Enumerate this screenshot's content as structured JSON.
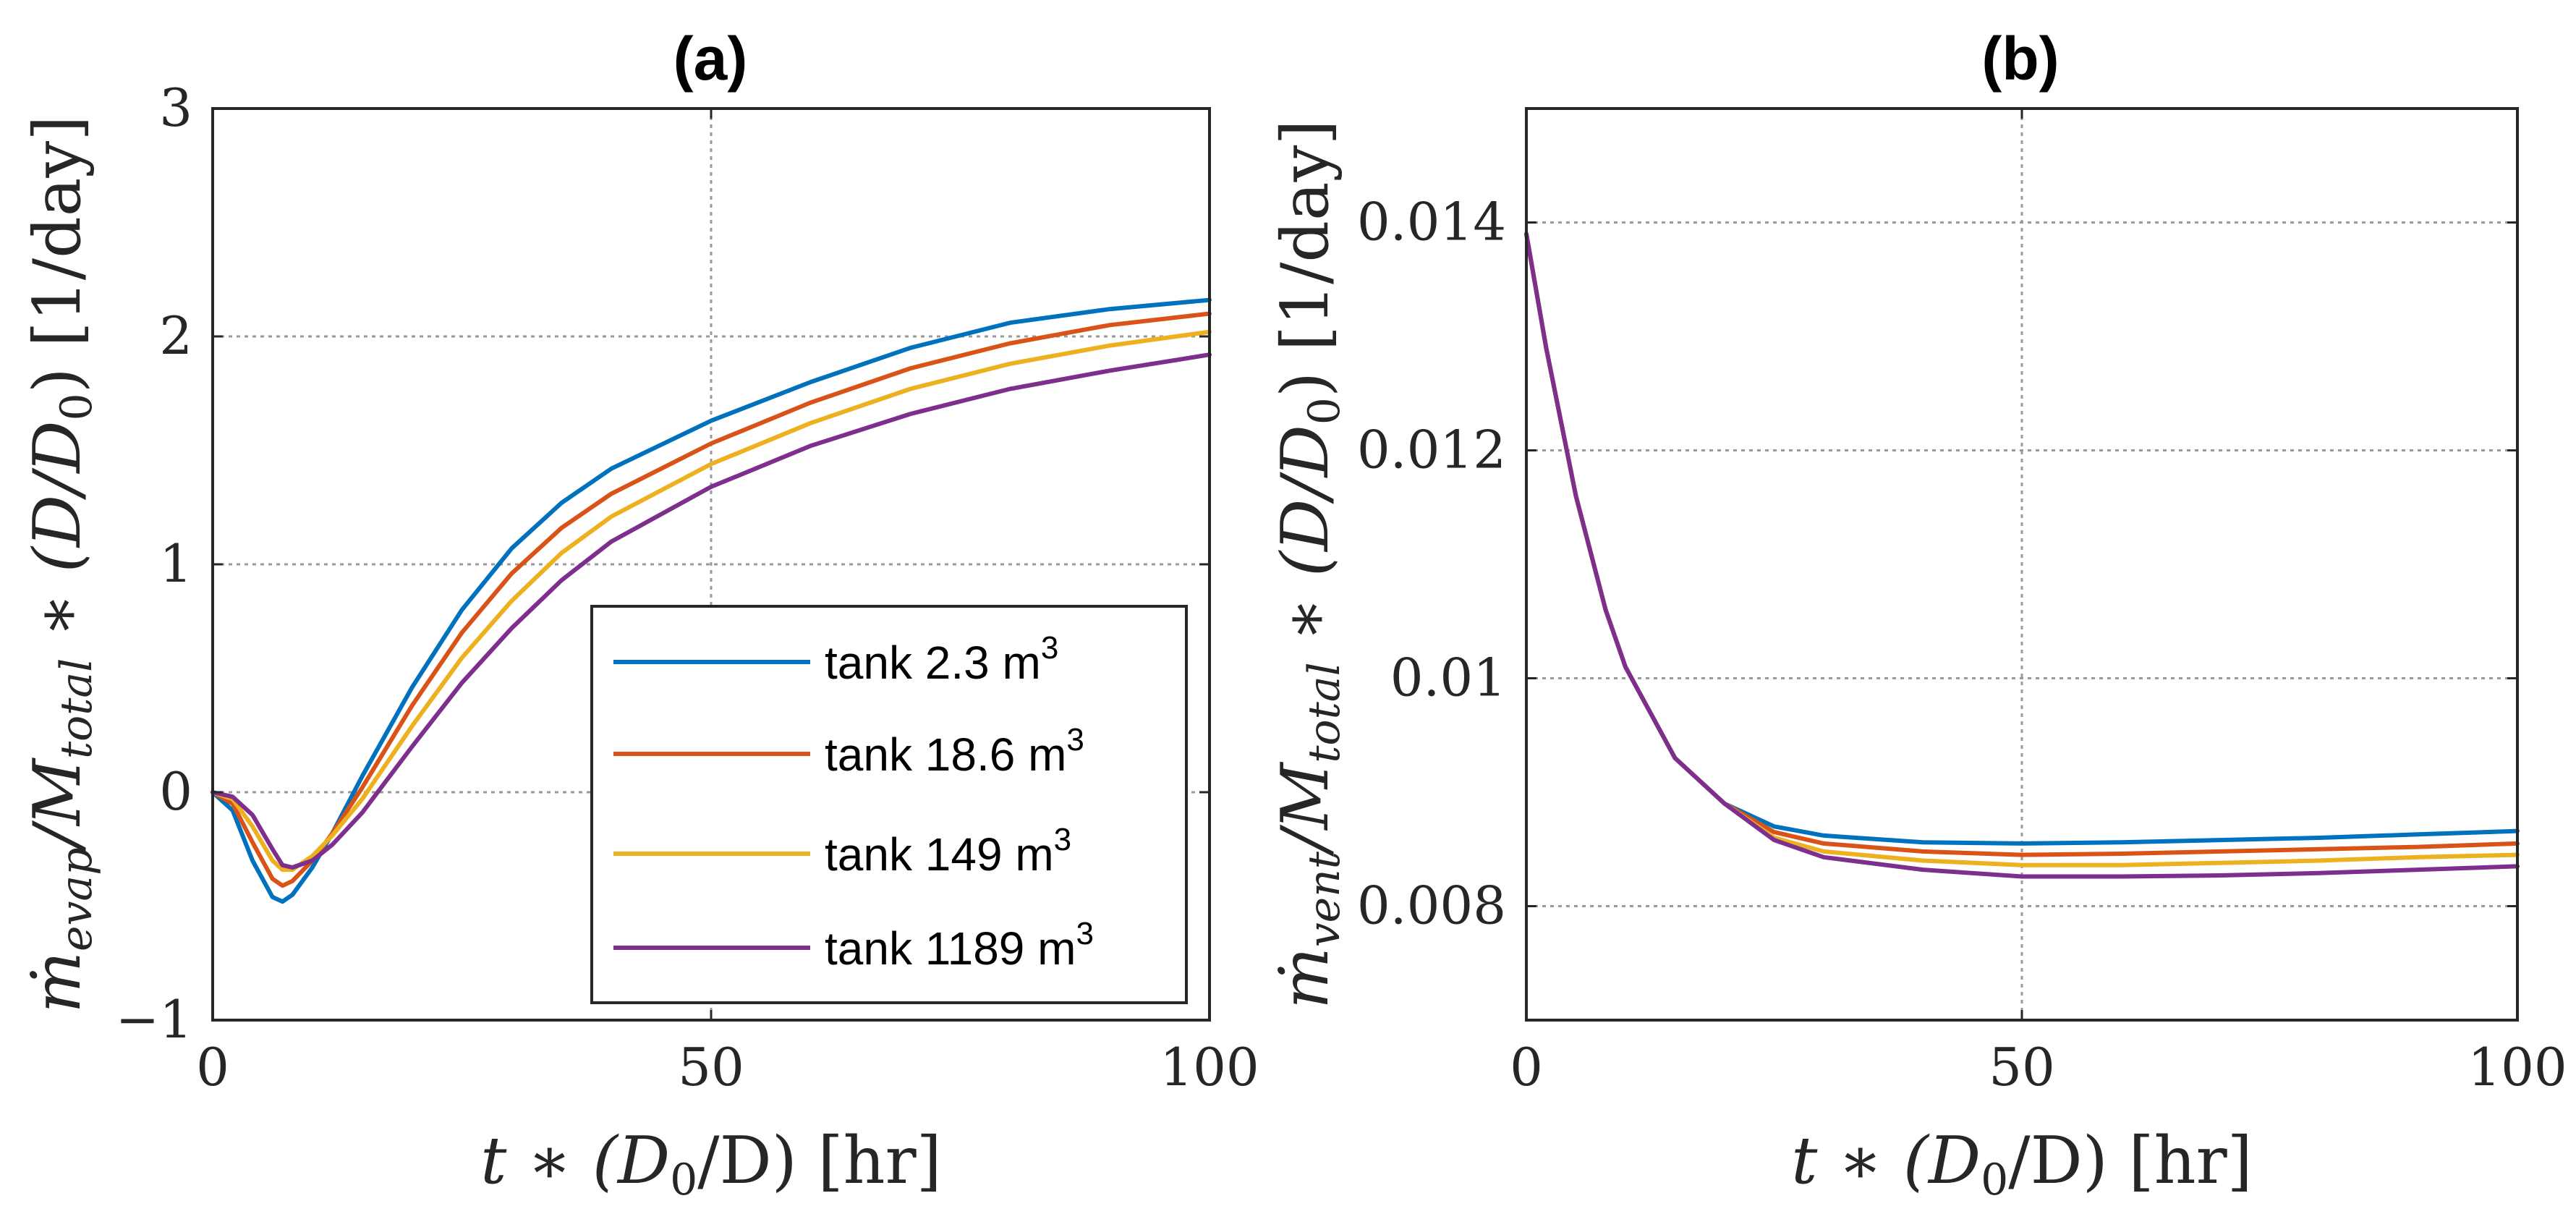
{
  "chart_data": [
    {
      "type": "line",
      "title": "(a)",
      "xlabel": "t * (D0/D) [hr]",
      "xlabel_parts": {
        "a": "t ∗ (D",
        "sub1": "0",
        "b": "/D)  [hr]"
      },
      "ylabel": "ṁevap/Mtotal * (D/D0) [1/day]",
      "ylabel_parts": {
        "a": "ṁ",
        "sub1": "evap",
        "b": "/M",
        "sub2": "total",
        "c": " ∗ (D/D",
        "sub3": "0",
        "d": ")  [1/day]"
      },
      "xlim": [
        0,
        100
      ],
      "ylim": [
        -1,
        3
      ],
      "xticks": [
        0,
        50,
        100
      ],
      "xtick_labels": [
        "0",
        "50",
        "100"
      ],
      "yticks": [
        -1,
        0,
        1,
        2,
        3
      ],
      "ytick_labels": [
        "−1",
        "0",
        "1",
        "2",
        "3"
      ],
      "grid": true,
      "legend_position": "bottom-right",
      "x": [
        0,
        2,
        4,
        6,
        7,
        8,
        10,
        12,
        15,
        20,
        25,
        30,
        35,
        40,
        50,
        60,
        70,
        80,
        90,
        100
      ],
      "series": [
        {
          "name": "tank 2.3 m",
          "sup": "3",
          "color": "#0072BD",
          "values": [
            0,
            -0.08,
            -0.3,
            -0.46,
            -0.48,
            -0.45,
            -0.33,
            -0.18,
            0.07,
            0.46,
            0.8,
            1.07,
            1.27,
            1.42,
            1.63,
            1.8,
            1.95,
            2.06,
            2.12,
            2.16
          ]
        },
        {
          "name": "tank 18.6 m",
          "sup": "3",
          "color": "#D95319",
          "values": [
            0,
            -0.05,
            -0.22,
            -0.38,
            -0.41,
            -0.39,
            -0.3,
            -0.18,
            0.02,
            0.38,
            0.7,
            0.96,
            1.16,
            1.31,
            1.53,
            1.71,
            1.86,
            1.97,
            2.05,
            2.1
          ]
        },
        {
          "name": "tank 149 m",
          "sup": "3",
          "color": "#EDB120",
          "values": [
            0,
            -0.03,
            -0.15,
            -0.3,
            -0.34,
            -0.34,
            -0.28,
            -0.19,
            -0.03,
            0.29,
            0.59,
            0.84,
            1.05,
            1.21,
            1.44,
            1.62,
            1.77,
            1.88,
            1.96,
            2.02
          ]
        },
        {
          "name": "tank 1189 m",
          "sup": "3",
          "color": "#7E2F8E",
          "values": [
            0,
            -0.02,
            -0.1,
            -0.25,
            -0.32,
            -0.33,
            -0.3,
            -0.23,
            -0.09,
            0.2,
            0.48,
            0.72,
            0.93,
            1.1,
            1.34,
            1.52,
            1.66,
            1.77,
            1.85,
            1.92
          ]
        }
      ]
    },
    {
      "type": "line",
      "title": "(b)",
      "xlabel": "t * (D0/D) [hr]",
      "xlabel_parts": {
        "a": "t ∗ (D",
        "sub1": "0",
        "b": "/D)  [hr]"
      },
      "ylabel": "ṁvent/Mtotal * (D/D0) [1/day]",
      "ylabel_parts": {
        "a": "ṁ",
        "sub1": "vent",
        "b": "/M",
        "sub2": "total",
        "c": " ∗ (D/D",
        "sub3": "0",
        "d": ")  [1/day]"
      },
      "xlim": [
        0,
        100
      ],
      "ylim": [
        0.007,
        0.015
      ],
      "xticks": [
        0,
        50,
        100
      ],
      "xtick_labels": [
        "0",
        "50",
        "100"
      ],
      "yticks": [
        0.008,
        0.01,
        0.012,
        0.014
      ],
      "ytick_labels": [
        "0.008",
        "0.01",
        "0.012",
        "0.014"
      ],
      "grid": true,
      "x": [
        0,
        2,
        5,
        8,
        10,
        15,
        20,
        25,
        30,
        40,
        50,
        60,
        70,
        80,
        90,
        100
      ],
      "series": [
        {
          "name": "tank 2.3 m3",
          "color": "#0072BD",
          "values": [
            0.0139,
            0.0129,
            0.0116,
            0.0106,
            0.0101,
            0.0093,
            0.0089,
            0.0087,
            0.00862,
            0.00856,
            0.00855,
            0.00856,
            0.00858,
            0.0086,
            0.00863,
            0.00866
          ]
        },
        {
          "name": "tank 18.6 m3",
          "color": "#D95319",
          "values": [
            0.0139,
            0.0129,
            0.0116,
            0.0106,
            0.0101,
            0.0093,
            0.0089,
            0.00865,
            0.00855,
            0.00848,
            0.00845,
            0.00846,
            0.00848,
            0.0085,
            0.00852,
            0.00855
          ]
        },
        {
          "name": "tank 149 m3",
          "color": "#EDB120",
          "values": [
            0.0139,
            0.0129,
            0.0116,
            0.0106,
            0.0101,
            0.0093,
            0.0089,
            0.0086,
            0.00848,
            0.0084,
            0.00836,
            0.00836,
            0.00838,
            0.0084,
            0.00843,
            0.00845
          ]
        },
        {
          "name": "tank 1189 m3",
          "color": "#7E2F8E",
          "values": [
            0.0139,
            0.0129,
            0.0116,
            0.0106,
            0.0101,
            0.0093,
            0.0089,
            0.00858,
            0.00843,
            0.00832,
            0.00826,
            0.00826,
            0.00827,
            0.00829,
            0.00832,
            0.00835
          ]
        }
      ]
    }
  ]
}
